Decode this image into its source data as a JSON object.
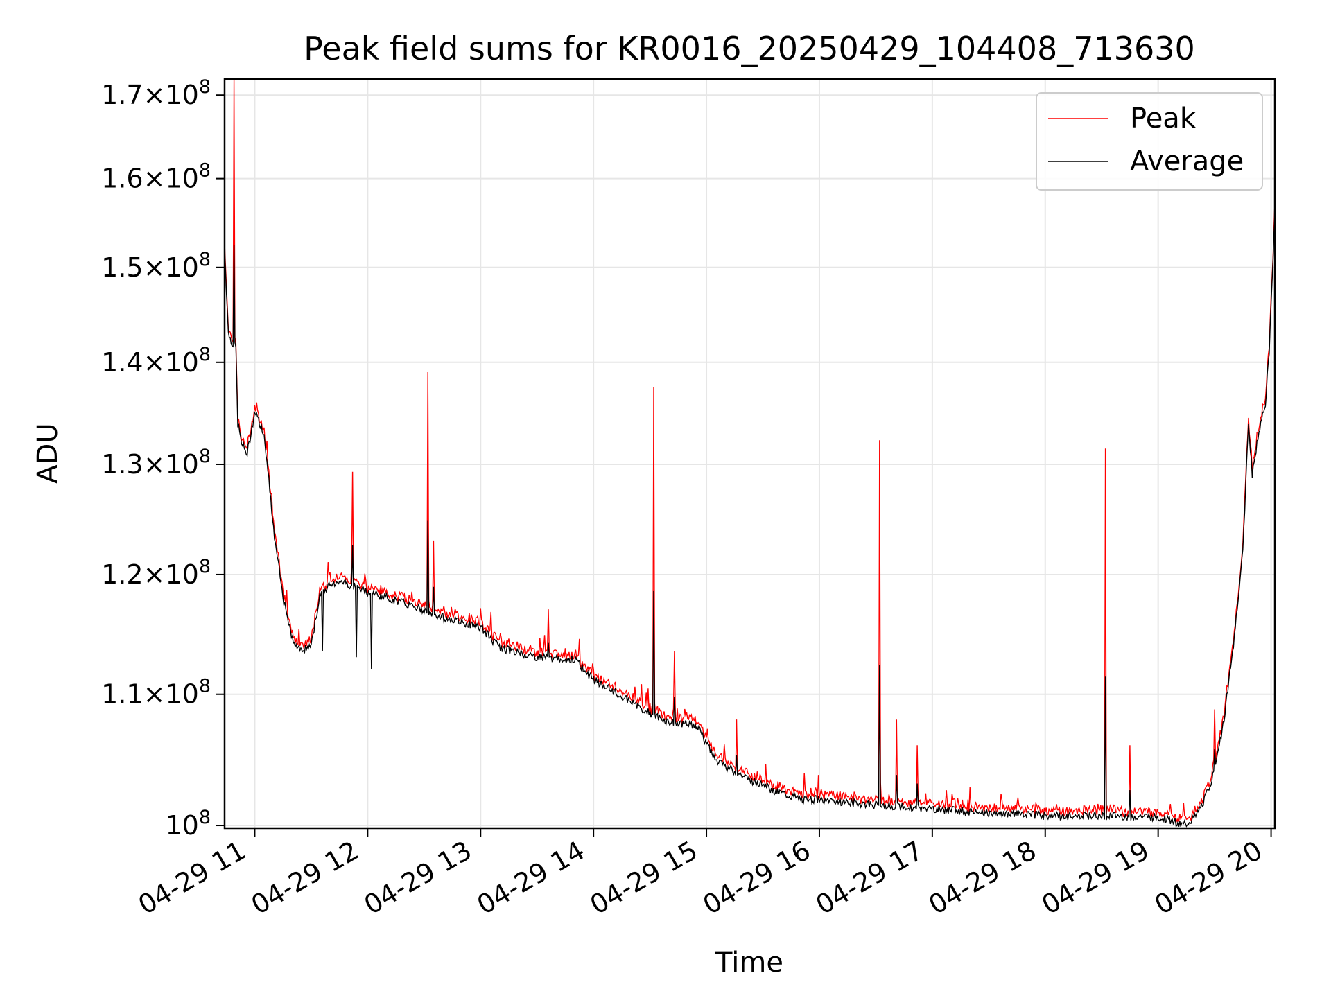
{
  "chart_data": {
    "type": "line",
    "title": "Peak field sums for KR0016_20250429_104408_713630",
    "xlabel": "Time",
    "ylabel": "ADU",
    "yscale": "log",
    "grid": true,
    "legend_position": "top-right",
    "xlim": [
      "2025-04-29 10:44",
      "2025-04-29 20:02"
    ],
    "ylim": [
      99800000,
      172000000
    ],
    "x_ticks": [
      "04-29 11",
      "04-29 12",
      "04-29 13",
      "04-29 14",
      "04-29 15",
      "04-29 16",
      "04-29 17",
      "04-29 18",
      "04-29 19",
      "04-29 20"
    ],
    "y_ticks": [
      {
        "value": 100000000,
        "mantissa": "",
        "exp": "8"
      },
      {
        "value": 110000000,
        "mantissa": "1.1",
        "exp": "8"
      },
      {
        "value": 120000000,
        "mantissa": "1.2",
        "exp": "8"
      },
      {
        "value": 130000000,
        "mantissa": "1.3",
        "exp": "8"
      },
      {
        "value": 140000000,
        "mantissa": "1.4",
        "exp": "8"
      },
      {
        "value": 150000000,
        "mantissa": "1.5",
        "exp": "8"
      },
      {
        "value": 160000000,
        "mantissa": "1.6",
        "exp": "8"
      },
      {
        "value": 170000000,
        "mantissa": "1.7",
        "exp": "8"
      }
    ],
    "series": [
      {
        "name": "Peak",
        "color": "#ff0000"
      },
      {
        "name": "Average",
        "color": "#000000"
      }
    ],
    "average_profile": [
      [
        "2025-04-29 10:44",
        152000000
      ],
      [
        "2025-04-29 10:46",
        143000000
      ],
      [
        "2025-04-29 10:48",
        142000000
      ],
      [
        "2025-04-29 10:50",
        141500000
      ],
      [
        "2025-04-29 10:51",
        134000000
      ],
      [
        "2025-04-29 10:53",
        132000000
      ],
      [
        "2025-04-29 10:56",
        131000000
      ],
      [
        "2025-04-29 11:00",
        135000000
      ],
      [
        "2025-04-29 11:05",
        133000000
      ],
      [
        "2025-04-29 11:10",
        124000000
      ],
      [
        "2025-04-29 11:15",
        118000000
      ],
      [
        "2025-04-29 11:20",
        114500000
      ],
      [
        "2025-04-29 11:25",
        113500000
      ],
      [
        "2025-04-29 11:30",
        114000000
      ],
      [
        "2025-04-29 11:35",
        118500000
      ],
      [
        "2025-04-29 11:45",
        119500000
      ],
      [
        "2025-04-29 12:00",
        118500000
      ],
      [
        "2025-04-29 12:20",
        117500000
      ],
      [
        "2025-04-29 12:40",
        116300000
      ],
      [
        "2025-04-29 13:00",
        115500000
      ],
      [
        "2025-04-29 13:10",
        113800000
      ],
      [
        "2025-04-29 13:30",
        113000000
      ],
      [
        "2025-04-29 13:50",
        112800000
      ],
      [
        "2025-04-29 14:00",
        111200000
      ],
      [
        "2025-04-29 14:15",
        109800000
      ],
      [
        "2025-04-29 14:30",
        108500000
      ],
      [
        "2025-04-29 14:40",
        107800000
      ],
      [
        "2025-04-29 14:55",
        107500000
      ],
      [
        "2025-04-29 15:05",
        104800000
      ],
      [
        "2025-04-29 15:20",
        103600000
      ],
      [
        "2025-04-29 15:35",
        102600000
      ],
      [
        "2025-04-29 15:50",
        101900000
      ],
      [
        "2025-04-29 16:00",
        101900000
      ],
      [
        "2025-04-29 16:30",
        101500000
      ],
      [
        "2025-04-29 17:00",
        101200000
      ],
      [
        "2025-04-29 17:30",
        100900000
      ],
      [
        "2025-04-29 18:00",
        100700000
      ],
      [
        "2025-04-29 18:30",
        100700000
      ],
      [
        "2025-04-29 19:00",
        100600000
      ],
      [
        "2025-04-29 19:10",
        100200000
      ],
      [
        "2025-04-29 19:15",
        100100000
      ],
      [
        "2025-04-29 19:20",
        100600000
      ],
      [
        "2025-04-29 19:25",
        102000000
      ],
      [
        "2025-04-29 19:30",
        104000000
      ],
      [
        "2025-04-29 19:35",
        108000000
      ],
      [
        "2025-04-29 19:40",
        114000000
      ],
      [
        "2025-04-29 19:45",
        122000000
      ],
      [
        "2025-04-29 19:48",
        134000000
      ],
      [
        "2025-04-29 19:50",
        129000000
      ],
      [
        "2025-04-29 19:53",
        132500000
      ],
      [
        "2025-04-29 19:57",
        136000000
      ],
      [
        "2025-04-29 19:59",
        141000000
      ],
      [
        "2025-04-29 20:00",
        146000000
      ],
      [
        "2025-04-29 20:02",
        156000000
      ]
    ],
    "peak_spikes": [
      [
        "2025-04-29 10:49",
        172000000
      ],
      [
        "2025-04-29 11:52",
        129300000
      ],
      [
        "2025-04-29 12:32",
        139000000
      ],
      [
        "2025-04-29 12:35",
        123000000
      ],
      [
        "2025-04-29 13:36",
        117000000
      ],
      [
        "2025-04-29 14:32",
        137500000
      ],
      [
        "2025-04-29 14:43",
        113500000
      ],
      [
        "2025-04-29 15:16",
        108000000
      ],
      [
        "2025-04-29 16:32",
        132300000
      ],
      [
        "2025-04-29 16:41",
        108000000
      ],
      [
        "2025-04-29 16:52",
        106000000
      ],
      [
        "2025-04-29 18:32",
        131500000
      ],
      [
        "2025-04-29 18:45",
        106000000
      ],
      [
        "2025-04-29 19:30",
        108800000
      ]
    ],
    "average_dips": [
      [
        "2025-04-29 11:54",
        113000000
      ],
      [
        "2025-04-29 12:02",
        112000000
      ],
      [
        "2025-04-29 11:36",
        113500000
      ]
    ]
  }
}
